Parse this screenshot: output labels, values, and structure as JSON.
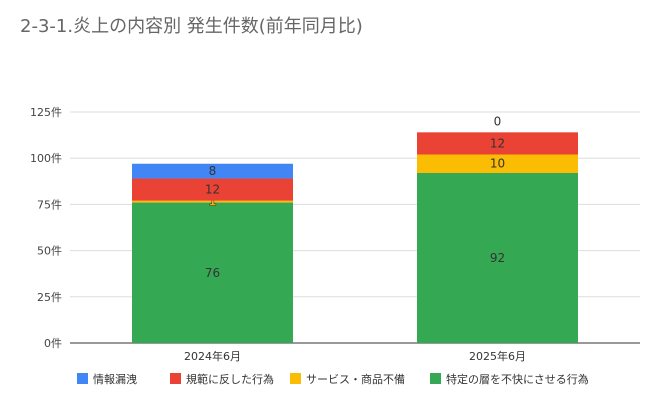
{
  "chart_data": {
    "type": "bar",
    "stacked": true,
    "title": "2-3-1.炎上の内容別 発生件数(前年同月比)",
    "categories": [
      "2024年6月",
      "2025年6月"
    ],
    "series": [
      {
        "name": "特定の層を不快にさせる行為",
        "values": [
          76,
          92
        ],
        "color": "#34a853"
      },
      {
        "name": "サービス・商品不備",
        "values": [
          1,
          10
        ],
        "color": "#fbbc04"
      },
      {
        "name": "規範に反した行為",
        "values": [
          12,
          12
        ],
        "color": "#ea4335"
      },
      {
        "name": "情報漏洩",
        "values": [
          8,
          0
        ],
        "color": "#4285f4"
      }
    ],
    "legend_order": [
      "情報漏洩",
      "規範に反した行為",
      "サービス・商品不備",
      "特定の層を不快にさせる行為"
    ],
    "ylim": [
      0,
      125
    ],
    "yticks": [
      "0件",
      "25件",
      "50件",
      "75件",
      "100件",
      "125件"
    ],
    "ytick_values": [
      0,
      25,
      50,
      75,
      100,
      125
    ],
    "grid": true,
    "legend_position": "bottom"
  }
}
